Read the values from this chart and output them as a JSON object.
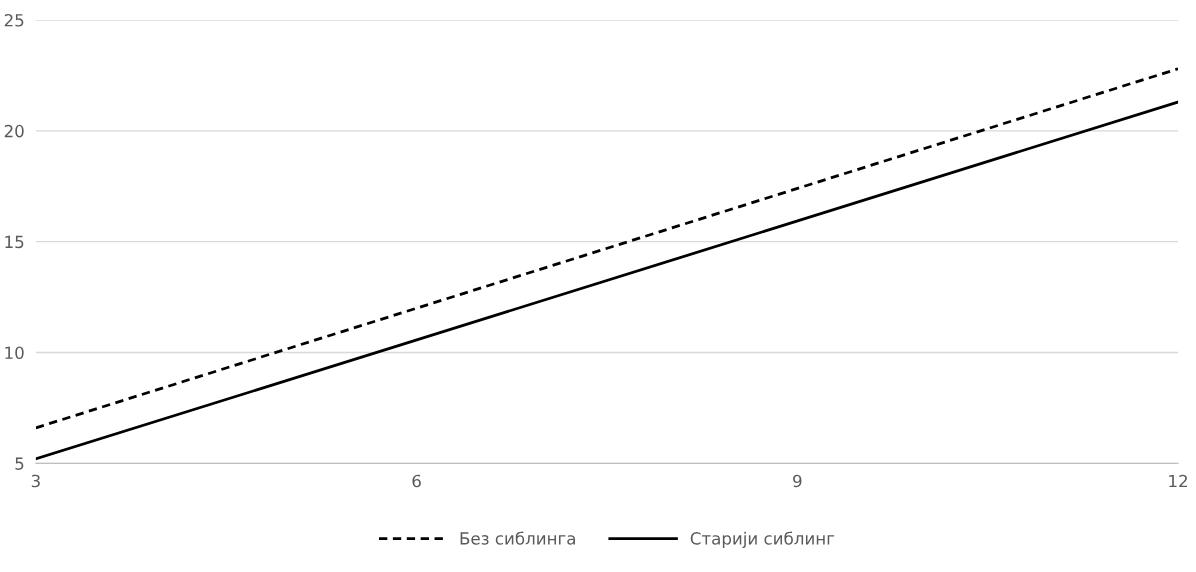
{
  "chart_data": {
    "type": "line",
    "x": [
      3,
      12
    ],
    "series": [
      {
        "name": "Без сиблинга",
        "color": "#000000",
        "values": [
          6.6,
          22.8
        ],
        "line_style": "dashed"
      },
      {
        "name": "Старији сиблинг",
        "color": "#000000",
        "values": [
          5.2,
          21.3
        ],
        "line_style": "solid"
      }
    ],
    "xlim": [
      3,
      12
    ],
    "xticks": [
      3,
      6,
      9,
      12
    ],
    "ylim": [
      5,
      25
    ],
    "yticks": [
      5,
      10,
      15,
      20,
      25
    ],
    "grid": "y",
    "legend": "bottom",
    "marker": "none"
  }
}
